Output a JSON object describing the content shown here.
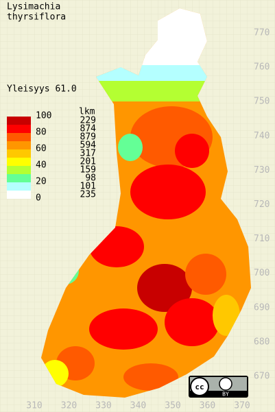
{
  "title": [
    "Lysimachia",
    "thyrsiflora"
  ],
  "frequency": "Yleisyys  61.0",
  "legend": {
    "scale_labels": [
      100,
      80,
      60,
      40,
      20,
      0
    ],
    "count_header": "lkm",
    "classes": [
      {
        "color": "#c80000",
        "count": 229
      },
      {
        "color": "#ff0000",
        "count": 874
      },
      {
        "color": "#ff5a00",
        "count": 879
      },
      {
        "color": "#ff9600",
        "count": 594
      },
      {
        "color": "#ffc800",
        "count": 317
      },
      {
        "color": "#ffff00",
        "count": 201
      },
      {
        "color": "#b4ff32",
        "count": 159
      },
      {
        "color": "#64ff96",
        "count": 98
      },
      {
        "color": "#b4ffff",
        "count": 101
      },
      {
        "color": "#ffffff",
        "count": 235
      }
    ]
  },
  "y_labels": [
    770,
    760,
    750,
    740,
    730,
    720,
    710,
    700,
    690,
    680,
    670
  ],
  "x_labels": [
    310,
    320,
    330,
    340,
    350,
    360,
    370
  ],
  "license": {
    "cc": "cc",
    "by": "BY"
  }
}
